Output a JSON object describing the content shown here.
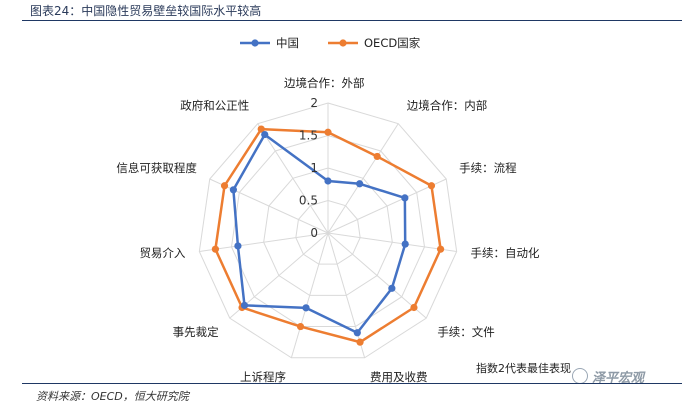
{
  "title": "图表24：中国隐性贸易壁垒较国际水平较高",
  "note": "指数2代表最佳表现",
  "source": "资料来源：OECD，恒大研究院",
  "watermark": "泽平宏观",
  "colors": {
    "china": "#4472c4",
    "oecd": "#ed7d31",
    "grid": "#d9d9d9",
    "rule": "#1f3864"
  },
  "chart_data": {
    "type": "radar",
    "axes": [
      "边境合作：外部",
      "边境合作：内部",
      "手续：流程",
      "手续：自动化",
      "手续：文件",
      "费用及收费",
      "上诉程序",
      "事先裁定",
      "贸易介入",
      "信息可获取程度",
      "政府和公正性"
    ],
    "ticks": [
      0,
      0.5,
      1,
      1.5,
      2
    ],
    "range": [
      0,
      2
    ],
    "legend_position": "top",
    "series": [
      {
        "name": "中国",
        "color": "#4472c4",
        "values": [
          0.8,
          0.9,
          1.3,
          1.2,
          1.3,
          1.6,
          1.2,
          1.7,
          1.4,
          1.6,
          1.8
        ]
      },
      {
        "name": "OECD国家",
        "color": "#ed7d31",
        "values": [
          1.55,
          1.4,
          1.75,
          1.75,
          1.75,
          1.75,
          1.5,
          1.75,
          1.75,
          1.75,
          1.9
        ]
      }
    ]
  }
}
